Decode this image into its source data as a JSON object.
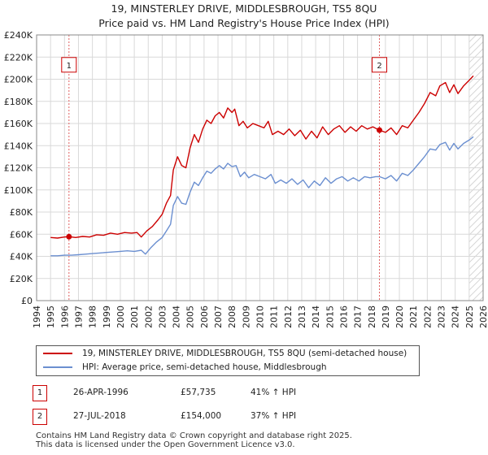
{
  "title_line1": "19, MINSTERLEY DRIVE, MIDDLESBROUGH, TS5 8QU",
  "title_line2": "Price paid vs. HM Land Registry's House Price Index (HPI)",
  "colors": {
    "property": "#cc0000",
    "hpi": "#6b8fd0",
    "grid": "#d9d9d9",
    "future_hatch": "#c8c8c8"
  },
  "legend": {
    "property_label": "19, MINSTERLEY DRIVE, MIDDLESBROUGH, TS5 8QU (semi-detached house)",
    "hpi_label": "HPI: Average price, semi-detached house, Middlesbrough"
  },
  "sales": [
    {
      "id": "1",
      "date": "26-APR-1996",
      "price": "£57,735",
      "hpi_change": "41% ↑ HPI"
    },
    {
      "id": "2",
      "date": "27-JUL-2018",
      "price": "£154,000",
      "hpi_change": "37% ↑ HPI"
    }
  ],
  "footer_line1": "Contains HM Land Registry data © Crown copyright and database right 2025.",
  "footer_line2": "This data is licensed under the Open Government Licence v3.0.",
  "chart_data": {
    "type": "line",
    "xlim": [
      1994,
      2026
    ],
    "ylim": [
      0,
      240000
    ],
    "x_ticks": [
      "1994",
      "1995",
      "1996",
      "1997",
      "1998",
      "1999",
      "2000",
      "2001",
      "2002",
      "2003",
      "2004",
      "2005",
      "2006",
      "2007",
      "2008",
      "2009",
      "2010",
      "2011",
      "2012",
      "2013",
      "2014",
      "2015",
      "2016",
      "2017",
      "2018",
      "2019",
      "2020",
      "2021",
      "2022",
      "2023",
      "2024",
      "2025",
      "2026"
    ],
    "y_ticks": [
      {
        "value": 0,
        "label": "£0"
      },
      {
        "value": 20000,
        "label": "£20K"
      },
      {
        "value": 40000,
        "label": "£40K"
      },
      {
        "value": 60000,
        "label": "£60K"
      },
      {
        "value": 80000,
        "label": "£80K"
      },
      {
        "value": 100000,
        "label": "£100K"
      },
      {
        "value": 120000,
        "label": "£120K"
      },
      {
        "value": 140000,
        "label": "£140K"
      },
      {
        "value": 160000,
        "label": "£160K"
      },
      {
        "value": 180000,
        "label": "£180K"
      },
      {
        "value": 200000,
        "label": "£200K"
      },
      {
        "value": 220000,
        "label": "£220K"
      },
      {
        "value": 240000,
        "label": "£240K"
      }
    ],
    "future_start": 2025.0,
    "markers": [
      {
        "label": "1",
        "x": 1996.32,
        "y": 57735,
        "box_y": 213000
      },
      {
        "label": "2",
        "x": 2018.57,
        "y": 154000,
        "box_y": 213000
      }
    ],
    "series": [
      {
        "name": "19, MINSTERLEY DRIVE, MIDDLESBROUGH, TS5 8QU (semi-detached house)",
        "color": "#cc0000",
        "points": [
          [
            1995.0,
            57000
          ],
          [
            1995.5,
            56500
          ],
          [
            1996.0,
            57500
          ],
          [
            1996.32,
            57735
          ],
          [
            1996.8,
            57000
          ],
          [
            1997.3,
            58000
          ],
          [
            1997.8,
            57500
          ],
          [
            1998.3,
            59500
          ],
          [
            1998.8,
            59000
          ],
          [
            1999.3,
            61000
          ],
          [
            1999.8,
            60000
          ],
          [
            2000.3,
            61500
          ],
          [
            2000.8,
            61000
          ],
          [
            2001.2,
            61500
          ],
          [
            2001.5,
            57500
          ],
          [
            2001.9,
            63000
          ],
          [
            2002.3,
            67000
          ],
          [
            2002.7,
            73000
          ],
          [
            2003.0,
            78000
          ],
          [
            2003.3,
            88000
          ],
          [
            2003.6,
            95000
          ],
          [
            2003.8,
            118000
          ],
          [
            2004.1,
            130000
          ],
          [
            2004.4,
            122000
          ],
          [
            2004.7,
            120000
          ],
          [
            2005.0,
            138000
          ],
          [
            2005.3,
            150000
          ],
          [
            2005.6,
            143000
          ],
          [
            2005.9,
            155000
          ],
          [
            2006.2,
            163000
          ],
          [
            2006.5,
            160000
          ],
          [
            2006.8,
            167000
          ],
          [
            2007.1,
            170000
          ],
          [
            2007.4,
            165000
          ],
          [
            2007.7,
            174000
          ],
          [
            2008.0,
            170000
          ],
          [
            2008.2,
            173000
          ],
          [
            2008.5,
            158000
          ],
          [
            2008.8,
            162000
          ],
          [
            2009.1,
            156000
          ],
          [
            2009.5,
            160000
          ],
          [
            2009.9,
            158000
          ],
          [
            2010.3,
            156000
          ],
          [
            2010.6,
            162000
          ],
          [
            2010.9,
            150000
          ],
          [
            2011.3,
            153000
          ],
          [
            2011.7,
            150000
          ],
          [
            2012.1,
            155000
          ],
          [
            2012.5,
            149000
          ],
          [
            2012.9,
            154000
          ],
          [
            2013.3,
            146000
          ],
          [
            2013.7,
            153000
          ],
          [
            2014.1,
            147000
          ],
          [
            2014.5,
            157000
          ],
          [
            2014.9,
            150000
          ],
          [
            2015.3,
            155000
          ],
          [
            2015.7,
            158000
          ],
          [
            2016.1,
            152000
          ],
          [
            2016.5,
            157000
          ],
          [
            2016.9,
            153000
          ],
          [
            2017.3,
            158000
          ],
          [
            2017.7,
            155000
          ],
          [
            2018.1,
            157000
          ],
          [
            2018.57,
            154000
          ],
          [
            2019.0,
            152000
          ],
          [
            2019.4,
            156000
          ],
          [
            2019.8,
            150000
          ],
          [
            2020.2,
            158000
          ],
          [
            2020.6,
            156000
          ],
          [
            2021.0,
            163000
          ],
          [
            2021.4,
            170000
          ],
          [
            2021.8,
            178000
          ],
          [
            2022.2,
            188000
          ],
          [
            2022.6,
            185000
          ],
          [
            2022.9,
            194000
          ],
          [
            2023.3,
            197000
          ],
          [
            2023.6,
            188000
          ],
          [
            2023.9,
            195000
          ],
          [
            2024.2,
            187000
          ],
          [
            2024.6,
            194000
          ],
          [
            2025.0,
            199000
          ],
          [
            2025.3,
            203000
          ]
        ]
      },
      {
        "name": "HPI: Average price, semi-detached house, Middlesbrough",
        "color": "#6b8fd0",
        "points": [
          [
            1995.0,
            40500
          ],
          [
            1995.5,
            40500
          ],
          [
            1996.0,
            41000
          ],
          [
            1996.5,
            41000
          ],
          [
            1997.0,
            41500
          ],
          [
            1997.5,
            42000
          ],
          [
            1998.0,
            42500
          ],
          [
            1998.5,
            43000
          ],
          [
            1999.0,
            43500
          ],
          [
            1999.5,
            44000
          ],
          [
            2000.0,
            44500
          ],
          [
            2000.5,
            45000
          ],
          [
            2001.0,
            44500
          ],
          [
            2001.5,
            45500
          ],
          [
            2001.8,
            42000
          ],
          [
            2002.2,
            48000
          ],
          [
            2002.6,
            53000
          ],
          [
            2003.0,
            57000
          ],
          [
            2003.3,
            63000
          ],
          [
            2003.6,
            69000
          ],
          [
            2003.8,
            86000
          ],
          [
            2004.1,
            94000
          ],
          [
            2004.4,
            88000
          ],
          [
            2004.7,
            87000
          ],
          [
            2005.0,
            98000
          ],
          [
            2005.3,
            107000
          ],
          [
            2005.6,
            104000
          ],
          [
            2005.9,
            111000
          ],
          [
            2006.2,
            117000
          ],
          [
            2006.5,
            115000
          ],
          [
            2006.8,
            119000
          ],
          [
            2007.1,
            122000
          ],
          [
            2007.4,
            119000
          ],
          [
            2007.7,
            124000
          ],
          [
            2008.0,
            121000
          ],
          [
            2008.3,
            122000
          ],
          [
            2008.6,
            112000
          ],
          [
            2008.9,
            116000
          ],
          [
            2009.2,
            111000
          ],
          [
            2009.6,
            114000
          ],
          [
            2010.0,
            112000
          ],
          [
            2010.4,
            110000
          ],
          [
            2010.8,
            114000
          ],
          [
            2011.1,
            106000
          ],
          [
            2011.5,
            109000
          ],
          [
            2011.9,
            106000
          ],
          [
            2012.3,
            110000
          ],
          [
            2012.7,
            105000
          ],
          [
            2013.1,
            109000
          ],
          [
            2013.5,
            102000
          ],
          [
            2013.9,
            108000
          ],
          [
            2014.3,
            104000
          ],
          [
            2014.7,
            111000
          ],
          [
            2015.1,
            106000
          ],
          [
            2015.5,
            110000
          ],
          [
            2015.9,
            112000
          ],
          [
            2016.3,
            108000
          ],
          [
            2016.7,
            111000
          ],
          [
            2017.1,
            108000
          ],
          [
            2017.5,
            112000
          ],
          [
            2017.9,
            111000
          ],
          [
            2018.3,
            112000
          ],
          [
            2018.57,
            112000
          ],
          [
            2019.0,
            110000
          ],
          [
            2019.4,
            113000
          ],
          [
            2019.8,
            108000
          ],
          [
            2020.2,
            115000
          ],
          [
            2020.6,
            113000
          ],
          [
            2021.0,
            118000
          ],
          [
            2021.4,
            124000
          ],
          [
            2021.8,
            130000
          ],
          [
            2022.2,
            137000
          ],
          [
            2022.6,
            136000
          ],
          [
            2022.9,
            141000
          ],
          [
            2023.3,
            143000
          ],
          [
            2023.6,
            136000
          ],
          [
            2023.9,
            142000
          ],
          [
            2024.2,
            137000
          ],
          [
            2024.6,
            142000
          ],
          [
            2025.0,
            145000
          ],
          [
            2025.3,
            148000
          ]
        ]
      }
    ]
  }
}
